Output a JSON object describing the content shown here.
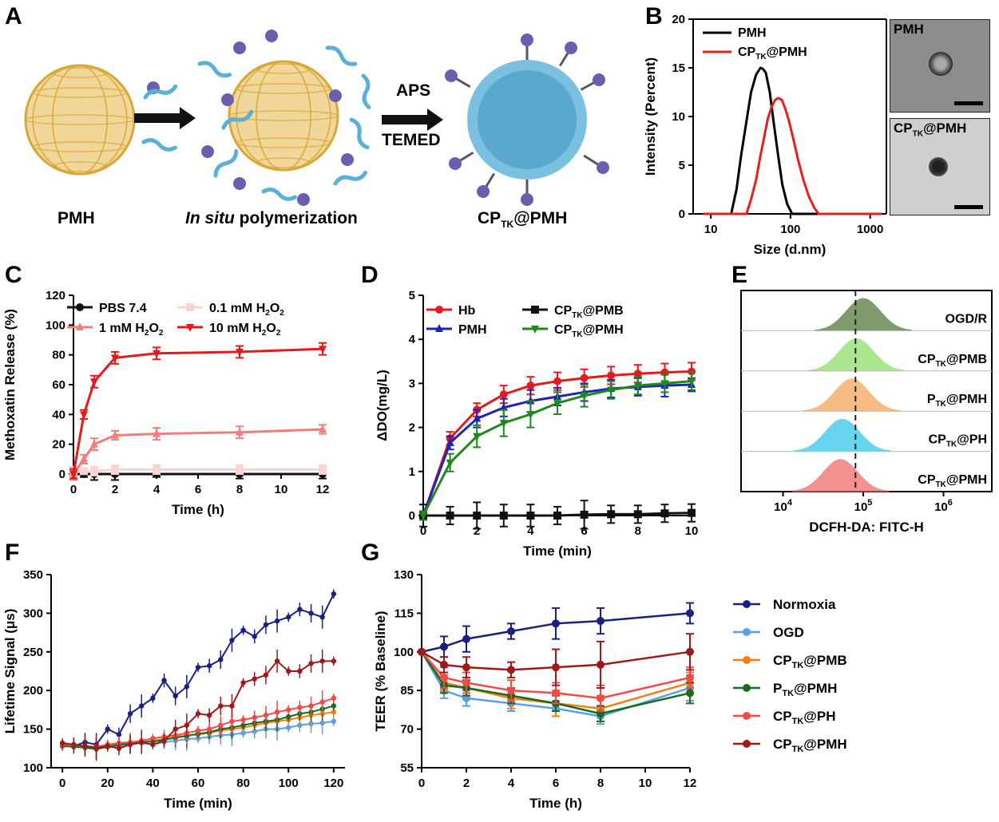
{
  "panels": {
    "A": "A",
    "B": "B",
    "C": "C",
    "D": "D",
    "E": "E",
    "F": "F",
    "G": "G"
  },
  "schematic": {
    "step1_label": "PMH",
    "step2_label_italic": "In situ",
    "step2_label_rest": " polymerization",
    "step3_label": "CP",
    "step3_sub": "TK",
    "step3_suffix": "@PMH",
    "arrow2_top": "APS",
    "arrow2_bottom": "TEMED",
    "colors": {
      "gold": "#d8a838",
      "hydrogel": "#5ab0d8",
      "bead": "#6a5fae"
    }
  },
  "micrographs": {
    "top_label": "PMH",
    "bottom_label": "CP",
    "bottom_sub": "TK",
    "bottom_suffix": "@PMH"
  },
  "chart_data": [
    {
      "id": "B",
      "type": "line",
      "xlabel": "Size (d.nm)",
      "ylabel": "Intensity (Percent)",
      "xscale": "log",
      "xlim": [
        6,
        1600
      ],
      "ylim": [
        0,
        20
      ],
      "xticks": [
        10,
        100,
        1000
      ],
      "xticklabels": [
        "10",
        "100",
        "1000"
      ],
      "yticks": [
        0,
        5,
        10,
        15,
        20
      ],
      "legend_position": "top-left",
      "series": [
        {
          "name": "PMH",
          "color": "#000000",
          "x": [
            8,
            18,
            21,
            24,
            28,
            32,
            37,
            42,
            45,
            49,
            55,
            62,
            70,
            79,
            91,
            105,
            122,
            1400
          ],
          "y": [
            0,
            0,
            2.5,
            6,
            9.5,
            12.5,
            14.3,
            15,
            14.9,
            14.5,
            12.5,
            9.2,
            6,
            3,
            1,
            0,
            0,
            0
          ]
        },
        {
          "name": "CP@PMH",
          "name_sub": "TK",
          "color": "#e8201c",
          "x": [
            8,
            28,
            32,
            37,
            42,
            47,
            52,
            58,
            64,
            70,
            78,
            86,
            96,
            110,
            125,
            145,
            170,
            200,
            225,
            250,
            1400
          ],
          "y": [
            0,
            0,
            1.5,
            3.5,
            6,
            8,
            9.8,
            11,
            11.7,
            11.9,
            11.7,
            10.8,
            9.5,
            7.5,
            5.5,
            3.5,
            1.8,
            0.6,
            0,
            0,
            0
          ]
        }
      ]
    },
    {
      "id": "C",
      "type": "line",
      "xlabel": "Time (h)",
      "ylabel": "Methoxatin Release (%)",
      "xlim": [
        0,
        12
      ],
      "ylim": [
        0,
        120
      ],
      "xticks": [
        0,
        2,
        4,
        6,
        8,
        10,
        12
      ],
      "yticks": [
        0,
        20,
        40,
        60,
        80,
        100,
        120
      ],
      "legend_position": "top",
      "series": [
        {
          "name": "PBS 7.4",
          "color": "#111111",
          "marker": "circle",
          "x": [
            0,
            0.5,
            1,
            2,
            4,
            8,
            12
          ],
          "y": [
            0,
            0,
            0,
            0,
            0,
            0,
            0
          ],
          "err": [
            3,
            2,
            4,
            4,
            2,
            3,
            3
          ]
        },
        {
          "name": "0.1 mM H2O2",
          "color": "#f9d4d4",
          "marker": "square",
          "x": [
            0,
            0.5,
            1,
            2,
            4,
            8,
            12
          ],
          "y": [
            2,
            2,
            2,
            3,
            3,
            3,
            3
          ],
          "err": [
            3,
            2,
            3,
            3,
            3,
            3,
            3
          ]
        },
        {
          "name": "1 mM H2O2",
          "color": "#ef7f7c",
          "marker": "triangle-up",
          "x": [
            0,
            0.5,
            1,
            2,
            4,
            8,
            12
          ],
          "y": [
            0,
            10,
            20,
            26,
            27,
            28,
            30
          ],
          "err": [
            4,
            3,
            4,
            3,
            4,
            4,
            3
          ]
        },
        {
          "name": "10 mM H2O2",
          "color": "#e41a1c",
          "marker": "triangle-down",
          "x": [
            0,
            0.5,
            1,
            2,
            4,
            8,
            12
          ],
          "y": [
            0,
            40,
            62,
            78,
            81,
            82,
            84
          ],
          "err": [
            3,
            3,
            4,
            4,
            4,
            4,
            4
          ]
        }
      ]
    },
    {
      "id": "D",
      "type": "line",
      "xlabel": "Time (min)",
      "ylabel": "ΔDO(mg/L)",
      "xlim": [
        0,
        10
      ],
      "ylim": [
        0,
        5
      ],
      "xticks": [
        0,
        2,
        4,
        6,
        8,
        10
      ],
      "yticks": [
        0,
        1,
        2,
        3,
        4,
        5
      ],
      "legend_position": "top",
      "series": [
        {
          "name": "Hb",
          "color": "#e41a1c",
          "marker": "circle",
          "x": [
            0,
            1,
            2,
            3,
            4,
            5,
            6,
            7,
            8,
            9,
            10
          ],
          "y": [
            0,
            1.75,
            2.4,
            2.75,
            2.95,
            3.05,
            3.12,
            3.18,
            3.22,
            3.25,
            3.27
          ],
          "err": [
            0.1,
            0.15,
            0.15,
            0.2,
            0.2,
            0.2,
            0.2,
            0.2,
            0.2,
            0.2,
            0.2
          ]
        },
        {
          "name": "PMH",
          "color": "#1f24b5",
          "marker": "triangle-up",
          "x": [
            0,
            1,
            2,
            3,
            4,
            5,
            6,
            7,
            8,
            9,
            10
          ],
          "y": [
            0,
            1.65,
            2.2,
            2.45,
            2.6,
            2.7,
            2.8,
            2.88,
            2.92,
            2.95,
            2.97
          ],
          "err": [
            0.1,
            0.15,
            0.2,
            0.2,
            0.25,
            0.2,
            0.2,
            0.2,
            0.2,
            0.25,
            0.15
          ]
        },
        {
          "name": "CP@PMB",
          "name_sub": "TK",
          "color": "#111111",
          "marker": "square",
          "x": [
            0,
            1,
            2,
            3,
            4,
            5,
            6,
            7,
            8,
            9,
            10
          ],
          "y": [
            0,
            0,
            0,
            0,
            0,
            0,
            0.02,
            0.03,
            0.03,
            0.05,
            0.06
          ],
          "err": [
            0.25,
            0.2,
            0.3,
            0.25,
            0.25,
            0.2,
            0.32,
            0.2,
            0.2,
            0.2,
            0.2
          ]
        },
        {
          "name": "CP@PMH",
          "name_sub": "TK",
          "color": "#1e8a1e",
          "marker": "triangle-down",
          "x": [
            0,
            1,
            2,
            3,
            4,
            5,
            6,
            7,
            8,
            9,
            10
          ],
          "y": [
            0,
            1.2,
            1.8,
            2.1,
            2.3,
            2.55,
            2.72,
            2.85,
            2.95,
            3.0,
            3.05
          ],
          "err": [
            0.1,
            0.2,
            0.25,
            0.3,
            0.3,
            0.25,
            0.25,
            0.2,
            0.2,
            0.2,
            0.2
          ]
        }
      ]
    },
    {
      "id": "E",
      "type": "area",
      "xlabel": "DCFH-DA: FITC-H",
      "xscale": "log",
      "xlim": [
        3000,
        4000000
      ],
      "xticks": [
        10000,
        100000,
        1000000
      ],
      "xticklabels": [
        "10",
        "10",
        "10"
      ],
      "xtick_exponents": [
        "4",
        "5",
        "6"
      ],
      "reference_line_x": 80000,
      "series": [
        {
          "name": "OGD/R",
          "color": "#557a3e",
          "peak": 100000
        },
        {
          "name": "CP@PMB",
          "name_sub": "TK",
          "color": "#8fe06a",
          "peak": 82000
        },
        {
          "name": "P@PMH",
          "name_sub": "TK",
          "color": "#f5a65b",
          "peak": 72000
        },
        {
          "name": "CP@PH",
          "name_sub": "TK",
          "color": "#38c6e8",
          "peak": 55000
        },
        {
          "name": "CP@PMH",
          "name_sub": "TK",
          "color": "#ef6b6b",
          "peak": 52000
        }
      ]
    },
    {
      "id": "F",
      "type": "line",
      "xlabel": "Time (min)",
      "ylabel": "Lifetime Signal (μs)",
      "xlim": [
        -5,
        125
      ],
      "ylim": [
        100,
        350
      ],
      "xticks": [
        0,
        20,
        40,
        60,
        80,
        100,
        120
      ],
      "yticks": [
        100,
        150,
        200,
        250,
        300,
        350
      ],
      "series": [
        {
          "name": "Normoxia",
          "color": "#1a1f80",
          "x": [
            0,
            5,
            10,
            15,
            20,
            25,
            30,
            35,
            40,
            45,
            50,
            55,
            60,
            65,
            70,
            75,
            80,
            85,
            90,
            95,
            100,
            105,
            110,
            115,
            120
          ],
          "y": [
            130,
            128,
            133,
            130,
            150,
            143,
            170,
            180,
            190,
            213,
            193,
            205,
            230,
            232,
            240,
            265,
            278,
            270,
            285,
            290,
            295,
            305,
            300,
            295,
            325
          ]
        },
        {
          "name": "OGD",
          "color": "#5b9fe8",
          "x": [
            0,
            5,
            10,
            15,
            20,
            25,
            30,
            35,
            40,
            45,
            50,
            55,
            60,
            65,
            70,
            75,
            80,
            85,
            90,
            95,
            100,
            105,
            110,
            115,
            120
          ],
          "y": [
            130,
            128,
            127,
            125,
            127,
            128,
            130,
            132,
            130,
            133,
            135,
            137,
            138,
            140,
            142,
            143,
            145,
            147,
            150,
            150,
            152,
            155,
            157,
            158,
            160
          ]
        },
        {
          "name": "CP@PMB",
          "name_sub": "TK",
          "color": "#f47f17",
          "x": [
            0,
            5,
            10,
            15,
            20,
            25,
            30,
            35,
            40,
            45,
            50,
            55,
            60,
            65,
            70,
            75,
            80,
            85,
            90,
            95,
            100,
            105,
            110,
            115,
            120
          ],
          "y": [
            130,
            128,
            128,
            126,
            128,
            130,
            132,
            133,
            135,
            137,
            140,
            142,
            143,
            145,
            148,
            150,
            152,
            155,
            158,
            160,
            162,
            165,
            168,
            170,
            172
          ]
        },
        {
          "name": "P@PMH",
          "name_sub": "TK",
          "color": "#1c6b1c",
          "x": [
            0,
            5,
            10,
            15,
            20,
            25,
            30,
            35,
            40,
            45,
            50,
            55,
            60,
            65,
            70,
            75,
            80,
            85,
            90,
            95,
            100,
            105,
            110,
            115,
            120
          ],
          "y": [
            128,
            127,
            126,
            124,
            127,
            130,
            131,
            133,
            134,
            136,
            139,
            141,
            144,
            146,
            150,
            152,
            155,
            158,
            160,
            162,
            166,
            170,
            172,
            176,
            180
          ]
        },
        {
          "name": "CP@PH",
          "name_sub": "TK",
          "color": "#f04a4a",
          "x": [
            0,
            5,
            10,
            15,
            20,
            25,
            30,
            35,
            40,
            45,
            50,
            55,
            60,
            65,
            70,
            75,
            80,
            85,
            90,
            95,
            100,
            105,
            110,
            115,
            120
          ],
          "y": [
            130,
            130,
            128,
            127,
            130,
            132,
            133,
            135,
            138,
            140,
            142,
            145,
            148,
            150,
            155,
            160,
            162,
            165,
            168,
            172,
            175,
            178,
            180,
            185,
            190
          ]
        },
        {
          "name": "CP@PMH",
          "name_sub": "TK",
          "color": "#9c1a1a",
          "x": [
            0,
            5,
            10,
            15,
            20,
            25,
            30,
            35,
            40,
            45,
            50,
            55,
            60,
            65,
            70,
            75,
            80,
            85,
            90,
            95,
            100,
            105,
            110,
            115,
            120
          ],
          "y": [
            132,
            130,
            128,
            126,
            128,
            125,
            130,
            133,
            130,
            135,
            150,
            155,
            170,
            168,
            180,
            180,
            210,
            215,
            220,
            238,
            225,
            225,
            235,
            238,
            238
          ]
        }
      ]
    },
    {
      "id": "G",
      "type": "line",
      "xlabel": "Time (h)",
      "ylabel": "TEER (% Baseline)",
      "xlim": [
        0,
        12
      ],
      "ylim": [
        55,
        130
      ],
      "xticks": [
        0,
        2,
        4,
        6,
        8,
        10,
        12
      ],
      "yticks": [
        55,
        70,
        85,
        100,
        115,
        130
      ],
      "legend_position": "right",
      "series": [
        {
          "name": "Normoxia",
          "color": "#1a1f80",
          "x": [
            0,
            1,
            2,
            4,
            6,
            8,
            12
          ],
          "y": [
            100,
            102,
            105,
            108,
            111,
            112,
            115
          ],
          "err": [
            0,
            4,
            5,
            3,
            6,
            5,
            4
          ]
        },
        {
          "name": "OGD",
          "color": "#5b9fe8",
          "x": [
            0,
            1,
            2,
            4,
            6,
            8,
            12
          ],
          "y": [
            100,
            85,
            82,
            80,
            78,
            75,
            86
          ],
          "err": [
            0,
            3,
            3,
            3,
            3,
            3,
            5
          ]
        },
        {
          "name": "CP@PMB",
          "name_sub": "TK",
          "color": "#f47f17",
          "x": [
            0,
            1,
            2,
            4,
            6,
            8,
            12
          ],
          "y": [
            100,
            88,
            86,
            82,
            80,
            78,
            88
          ],
          "err": [
            0,
            3,
            3,
            4,
            5,
            5,
            4
          ]
        },
        {
          "name": "P@PMH",
          "name_sub": "TK",
          "color": "#1c6b1c",
          "x": [
            0,
            1,
            2,
            4,
            6,
            8,
            12
          ],
          "y": [
            100,
            87,
            86,
            83,
            80,
            76,
            84
          ],
          "err": [
            0,
            3,
            3,
            3,
            3,
            3,
            4
          ]
        },
        {
          "name": "CP@PH",
          "name_sub": "TK",
          "color": "#f04a4a",
          "x": [
            0,
            1,
            2,
            4,
            6,
            8,
            12
          ],
          "y": [
            100,
            90,
            88,
            85,
            84,
            82,
            90
          ],
          "err": [
            0,
            4,
            4,
            4,
            4,
            5,
            4
          ]
        },
        {
          "name": "CP@PMH",
          "name_sub": "TK",
          "color": "#9c1a1a",
          "x": [
            0,
            1,
            2,
            4,
            6,
            8,
            12
          ],
          "y": [
            100,
            95,
            94,
            93,
            94,
            95,
            100
          ],
          "err": [
            0,
            3,
            4,
            3,
            7,
            9,
            7
          ]
        }
      ]
    }
  ]
}
